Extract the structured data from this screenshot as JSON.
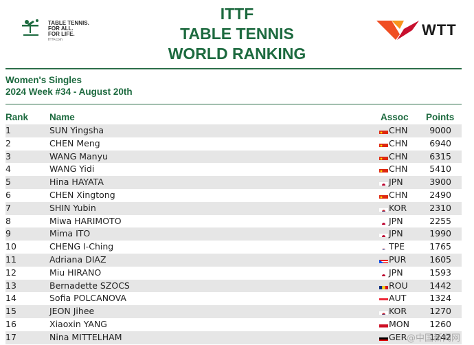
{
  "header": {
    "ittf_tagline": [
      "TABLE TENNIS.",
      "FOR ALL.",
      "FOR LIFE."
    ],
    "ittf_url": "ITTF.com",
    "title_lines": [
      "ITTF",
      "TABLE TENNIS",
      "WORLD RANKING"
    ],
    "wtt_text": "WTT"
  },
  "category": "Women's Singles",
  "week": "2024 Week #34 - August 20th",
  "columns": {
    "rank": "Rank",
    "name": "Name",
    "assoc": "Assoc",
    "points": "Points"
  },
  "rows": [
    {
      "rank": "1",
      "name": "SUN Yingsha",
      "flag": "cn-flag-icon",
      "assoc": "CHN",
      "points": "9000"
    },
    {
      "rank": "2",
      "name": "CHEN Meng",
      "flag": "cn-flag-icon",
      "assoc": "CHN",
      "points": "6940"
    },
    {
      "rank": "3",
      "name": "WANG Manyu",
      "flag": "cn-flag-icon",
      "assoc": "CHN",
      "points": "6315"
    },
    {
      "rank": "4",
      "name": "WANG Yidi",
      "flag": "cn-flag-icon",
      "assoc": "CHN",
      "points": "5410"
    },
    {
      "rank": "5",
      "name": "Hina HAYATA",
      "flag": "jp-flag-icon",
      "assoc": "JPN",
      "points": "3900"
    },
    {
      "rank": "6",
      "name": "CHEN Xingtong",
      "flag": "cn-flag-icon",
      "assoc": "CHN",
      "points": "2490"
    },
    {
      "rank": "7",
      "name": "SHIN Yubin",
      "flag": "kr-flag-icon",
      "assoc": "KOR",
      "points": "2310"
    },
    {
      "rank": "8",
      "name": "Miwa HARIMOTO",
      "flag": "jp-flag-icon",
      "assoc": "JPN",
      "points": "2255"
    },
    {
      "rank": "9",
      "name": "Mima ITO",
      "flag": "jp-flag-icon",
      "assoc": "JPN",
      "points": "1990"
    },
    {
      "rank": "10",
      "name": "CHENG I-Ching",
      "flag": "tpe-flag-icon",
      "assoc": "TPE",
      "points": "1765"
    },
    {
      "rank": "11",
      "name": "Adriana DIAZ",
      "flag": "pr-flag-icon",
      "assoc": "PUR",
      "points": "1605"
    },
    {
      "rank": "12",
      "name": "Miu HIRANO",
      "flag": "jp-flag-icon",
      "assoc": "JPN",
      "points": "1593"
    },
    {
      "rank": "13",
      "name": "Bernadette SZOCS",
      "flag": "ro-flag-icon",
      "assoc": "ROU",
      "points": "1442"
    },
    {
      "rank": "14",
      "name": "Sofia POLCANOVA",
      "flag": "at-flag-icon",
      "assoc": "AUT",
      "points": "1324"
    },
    {
      "rank": "15",
      "name": "JEON Jihee",
      "flag": "kr-flag-icon",
      "assoc": "KOR",
      "points": "1270"
    },
    {
      "rank": "16",
      "name": "Xiaoxin YANG",
      "flag": "mc-flag-icon",
      "assoc": "MON",
      "points": "1260"
    },
    {
      "rank": "17",
      "name": "Nina MITTELHAM",
      "flag": "de-flag-icon",
      "assoc": "GER",
      "points": "1242"
    }
  ],
  "watermark": "@中国新闻网",
  "colors": {
    "accent": "#1d6a3f",
    "rule": "#2c6e49",
    "stripe": "#e6e6e6",
    "wtt_orange": "#f04e23",
    "wtt_red": "#c8102e"
  }
}
